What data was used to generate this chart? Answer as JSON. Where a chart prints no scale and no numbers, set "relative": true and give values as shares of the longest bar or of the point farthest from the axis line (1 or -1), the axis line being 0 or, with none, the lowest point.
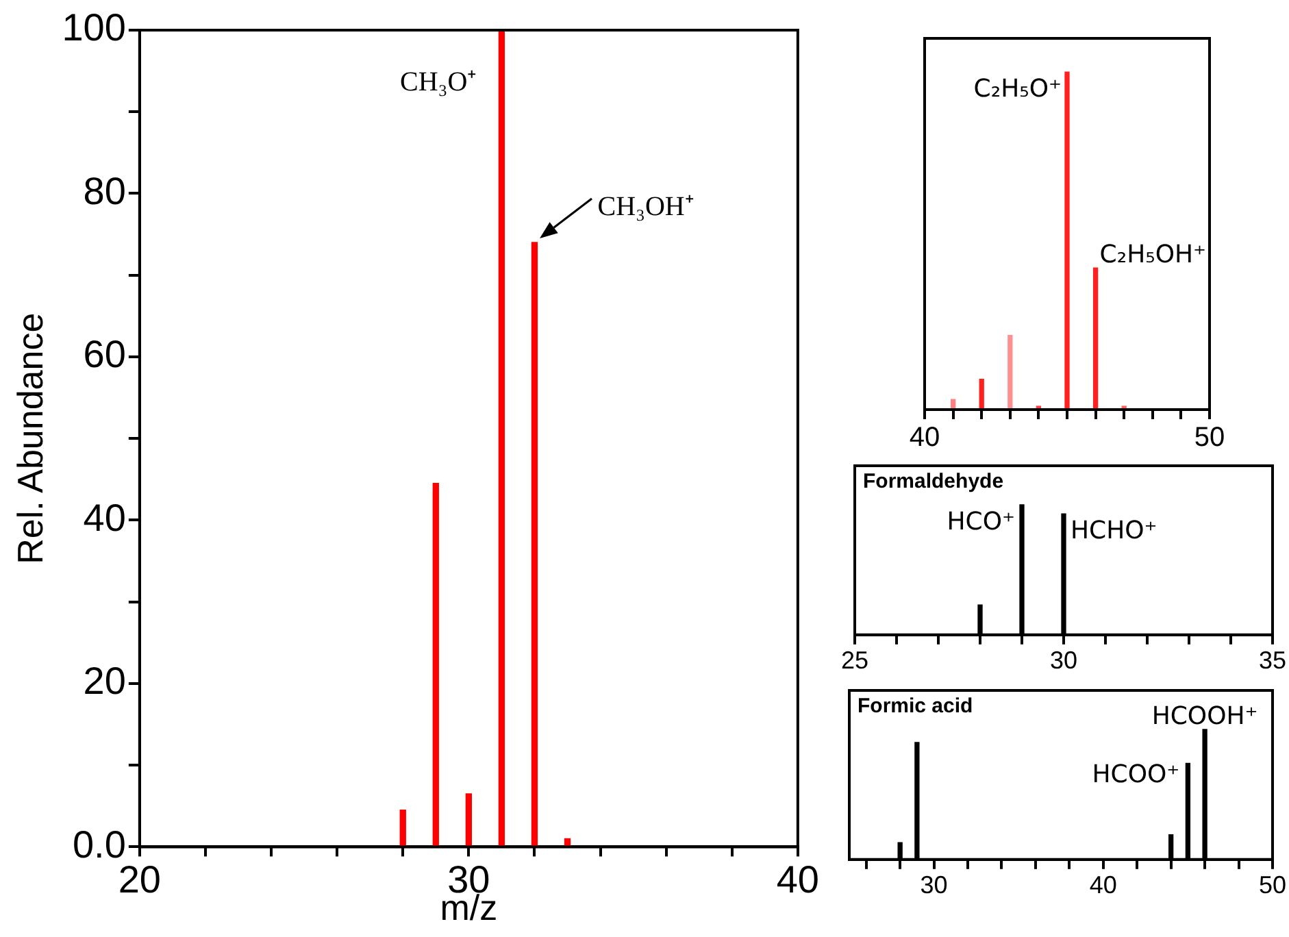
{
  "chart_data": [
    {
      "type": "bar",
      "xlabel": "m/z",
      "ylabel": "Rel. Abundance",
      "x": [
        28,
        29,
        30,
        31,
        32,
        33
      ],
      "values": [
        4.5,
        44.5,
        6.5,
        100,
        74,
        1
      ],
      "color": "#ff0000",
      "xlim": [
        20,
        40
      ],
      "xticks": [
        20,
        {
          "value": 22,
          "label": null
        },
        {
          "value": 24,
          "label": null
        },
        {
          "value": 26,
          "label": null
        },
        {
          "value": 28,
          "label": null
        },
        30,
        {
          "value": 32,
          "label": null
        },
        {
          "value": 34,
          "label": null
        },
        {
          "value": 36,
          "label": null
        },
        {
          "value": 38,
          "label": null
        },
        40
      ],
      "ylim": [
        0,
        100
      ],
      "yticks": [
        {
          "value": 0,
          "label": "0.0"
        },
        {
          "value": 10,
          "label": null
        },
        20,
        {
          "value": 30,
          "label": null
        },
        40,
        {
          "value": 50,
          "label": null
        },
        60,
        {
          "value": 70,
          "label": null
        },
        80,
        {
          "value": 90,
          "label": null
        },
        100
      ],
      "annotations": [
        {
          "text": "CH₃O⁺",
          "x": 31,
          "y": 100
        },
        {
          "text": "CH₃OH⁺",
          "x": 32,
          "y": 74
        }
      ]
    },
    {
      "type": "bar",
      "relative": true,
      "x": [
        41,
        42,
        43,
        44,
        45,
        46,
        47
      ],
      "values": [
        0.03,
        0.09,
        0.22,
        0.01,
        1,
        0.42,
        0.01
      ],
      "colors": [
        "#ff8080",
        "#ff2020",
        "#ff9090",
        "#ff4040",
        "#ff2020",
        "#ff2020",
        "#ff6060"
      ],
      "xlim": [
        40,
        50
      ],
      "xticks": [
        40,
        {
          "value": 41,
          "label": null
        },
        {
          "value": 42,
          "label": null
        },
        {
          "value": 43,
          "label": null
        },
        {
          "value": 44,
          "label": null
        },
        {
          "value": 45,
          "label": null
        },
        {
          "value": 46,
          "label": null
        },
        {
          "value": 47,
          "label": null
        },
        {
          "value": 48,
          "label": null
        },
        {
          "value": 49,
          "label": null
        },
        50
      ],
      "annotations": [
        {
          "text": "C₂H₅O⁺",
          "x": 45,
          "y": 1
        },
        {
          "text": "C₂H₅OH⁺",
          "x": 46,
          "y": 0.42
        }
      ]
    },
    {
      "type": "bar",
      "relative": true,
      "title": "Formaldehyde",
      "x": [
        28,
        29,
        30
      ],
      "values": [
        0.23,
        1,
        0.93
      ],
      "color": "#000000",
      "xlim": [
        25,
        35
      ],
      "xticks": [
        25,
        {
          "value": 26,
          "label": null
        },
        {
          "value": 27,
          "label": null
        },
        {
          "value": 28,
          "label": null
        },
        {
          "value": 29,
          "label": null
        },
        30,
        {
          "value": 31,
          "label": null
        },
        {
          "value": 32,
          "label": null
        },
        {
          "value": 33,
          "label": null
        },
        {
          "value": 34,
          "label": null
        },
        35
      ],
      "annotations": [
        {
          "text": "HCO⁺",
          "x": 29,
          "y": 1
        },
        {
          "text": "HCHO⁺",
          "x": 30,
          "y": 0.93
        }
      ]
    },
    {
      "type": "bar",
      "relative": true,
      "title": "Formic acid",
      "x": [
        28,
        29,
        44,
        45,
        46
      ],
      "values": [
        0.13,
        0.9,
        0.19,
        0.74,
        1
      ],
      "color": "#000000",
      "xlim": [
        25,
        50
      ],
      "xticks": [
        {
          "value": 26,
          "label": null
        },
        {
          "value": 28,
          "label": null
        },
        30,
        {
          "value": 32,
          "label": null
        },
        {
          "value": 34,
          "label": null
        },
        {
          "value": 36,
          "label": null
        },
        {
          "value": 38,
          "label": null
        },
        40,
        {
          "value": 42,
          "label": null
        },
        {
          "value": 44,
          "label": null
        },
        {
          "value": 46,
          "label": null
        },
        {
          "value": 48,
          "label": null
        },
        50
      ],
      "annotations": [
        {
          "text": "HCOO⁺",
          "x": 45,
          "y": 0.74
        },
        {
          "text": "HCOOH⁺",
          "x": 46,
          "y": 1
        }
      ]
    }
  ]
}
